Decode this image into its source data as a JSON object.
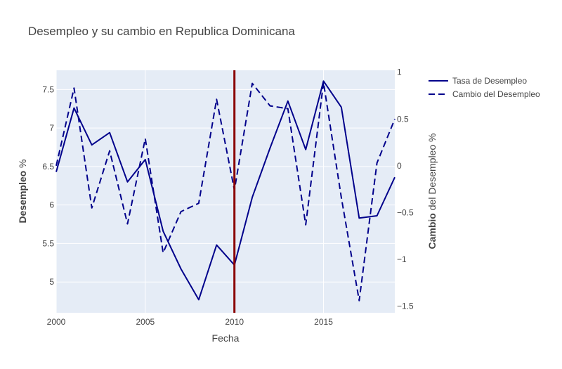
{
  "chart_data": {
    "type": "line",
    "title": "Desempleo y su cambio en Republica Dominicana",
    "xlabel": "Fecha",
    "ylabel": {
      "bold": "Desempleo",
      "rest": " %"
    },
    "y2label": {
      "bold": "Cambio",
      "rest": " del Desempleo %"
    },
    "xlim": [
      2000,
      2019
    ],
    "ylim": [
      4.6,
      7.75
    ],
    "y2lim": [
      -1.57,
      1.02
    ],
    "x_ticks": [
      2000,
      2005,
      2010,
      2015
    ],
    "x_tick_labels": [
      "2000",
      "2005",
      "2010",
      "2015"
    ],
    "y_ticks": [
      5,
      5.5,
      6,
      6.5,
      7,
      7.5
    ],
    "y_tick_labels": [
      "5",
      "5.5",
      "6",
      "6.5",
      "7",
      "7.5"
    ],
    "y2_ticks": [
      1,
      0.5,
      0,
      -0.5,
      -1,
      -1.5
    ],
    "y2_tick_labels": [
      "1",
      "0.5",
      "0",
      "−0.5",
      "−1",
      "−1.5"
    ],
    "x": [
      2000,
      2001,
      2002,
      2003,
      2004,
      2005,
      2006,
      2007,
      2008,
      2009,
      2010,
      2011,
      2012,
      2013,
      2014,
      2015,
      2016,
      2017,
      2018,
      2019
    ],
    "series": [
      {
        "name": "Tasa de Desempleo",
        "axis": "y",
        "dash": "solid",
        "color": "#00008b",
        "values": [
          6.43,
          7.26,
          6.78,
          6.94,
          6.3,
          6.59,
          5.66,
          5.17,
          4.77,
          5.48,
          5.22,
          6.1,
          6.74,
          7.35,
          6.72,
          7.61,
          7.27,
          5.83,
          5.86,
          6.36
        ]
      },
      {
        "name": "Cambio del Desempleo",
        "axis": "y2",
        "dash": "dash",
        "color": "#00008b",
        "values": [
          0.0,
          0.83,
          -0.45,
          0.16,
          -0.62,
          0.29,
          -0.93,
          -0.49,
          -0.4,
          0.71,
          -0.26,
          0.88,
          0.64,
          0.61,
          -0.63,
          0.89,
          -0.34,
          -1.44,
          0.03,
          0.5
        ]
      }
    ],
    "vline": {
      "x": 2010,
      "color": "#8b0000"
    },
    "grid": true,
    "legend_position": "top-right",
    "colors": {
      "plot_bg": "#e5ecf6",
      "grid": "#ffffff",
      "text": "#444444"
    }
  }
}
